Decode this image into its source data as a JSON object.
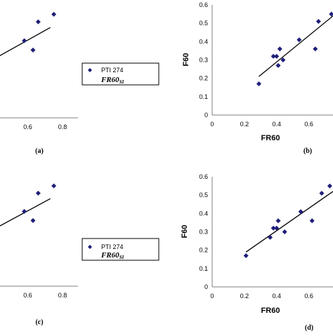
{
  "chart_data": [
    {
      "id": "a",
      "type": "scatter",
      "panel_label": "(a)",
      "xlabel": "",
      "ylabel": "",
      "x_ticks": [
        "0.6",
        "0.8"
      ],
      "xlim": [
        0.4,
        0.8
      ],
      "ylim": [
        0.1,
        0.6
      ],
      "points": [
        [
          0.58,
          0.41
        ],
        [
          0.63,
          0.36
        ],
        [
          0.66,
          0.51
        ],
        [
          0.75,
          0.55
        ]
      ],
      "trendline": [
        [
          0.4,
          0.31
        ],
        [
          0.73,
          0.48
        ]
      ]
    },
    {
      "id": "b",
      "type": "scatter",
      "panel_label": "(b)",
      "xlabel": "FR60",
      "ylabel": "F60",
      "x_ticks": [
        "0",
        "0.2",
        "0.4",
        "0.6"
      ],
      "y_ticks": [
        "0",
        "0.1",
        "0.2",
        "0.3",
        "0.4",
        "0.5",
        "0.6"
      ],
      "xlim": [
        0,
        0.75
      ],
      "ylim": [
        0,
        0.6
      ],
      "points": [
        [
          0.29,
          0.17
        ],
        [
          0.38,
          0.32
        ],
        [
          0.4,
          0.32
        ],
        [
          0.41,
          0.27
        ],
        [
          0.42,
          0.36
        ],
        [
          0.44,
          0.3
        ],
        [
          0.54,
          0.41
        ],
        [
          0.64,
          0.36
        ],
        [
          0.66,
          0.51
        ],
        [
          0.74,
          0.55
        ]
      ],
      "trendline": [
        [
          0.29,
          0.21
        ],
        [
          0.75,
          0.54
        ]
      ]
    },
    {
      "id": "c",
      "type": "scatter",
      "panel_label": "(c)",
      "xlabel": "",
      "ylabel": "",
      "x_ticks": [
        "0.6",
        "0.8"
      ],
      "xlim": [
        0.4,
        0.8
      ],
      "ylim": [
        0.1,
        0.6
      ],
      "points": [
        [
          0.58,
          0.41
        ],
        [
          0.63,
          0.36
        ],
        [
          0.66,
          0.51
        ],
        [
          0.75,
          0.55
        ]
      ],
      "trendline": [
        [
          0.4,
          0.31
        ],
        [
          0.73,
          0.48
        ]
      ]
    },
    {
      "id": "d",
      "type": "scatter",
      "panel_label": "(d)",
      "xlabel": "FR60",
      "ylabel": "F60",
      "x_ticks": [
        "0",
        "0.2",
        "0.4",
        "0.6"
      ],
      "y_ticks": [
        "0",
        "0.1",
        "0.2",
        "0.3",
        "0.4",
        "0.5",
        "0.6"
      ],
      "xlim": [
        0,
        0.75
      ],
      "ylim": [
        0,
        0.6
      ],
      "points": [
        [
          0.21,
          0.17
        ],
        [
          0.36,
          0.27
        ],
        [
          0.38,
          0.32
        ],
        [
          0.4,
          0.32
        ],
        [
          0.41,
          0.36
        ],
        [
          0.45,
          0.3
        ],
        [
          0.55,
          0.41
        ],
        [
          0.62,
          0.36
        ],
        [
          0.68,
          0.51
        ],
        [
          0.73,
          0.55
        ]
      ],
      "trendline": [
        [
          0.21,
          0.19
        ],
        [
          0.75,
          0.52
        ]
      ]
    }
  ],
  "legends": [
    {
      "series": "PTI 274",
      "formula": "FR60",
      "formula_sub": "SI"
    },
    {
      "series": "PTI 274",
      "formula": "FR60",
      "formula_sub": "SI"
    }
  ],
  "colors": {
    "marker": "#1f1f7a",
    "trendline": "#000000",
    "axis": "#808080"
  },
  "marker_shape": "diamond"
}
